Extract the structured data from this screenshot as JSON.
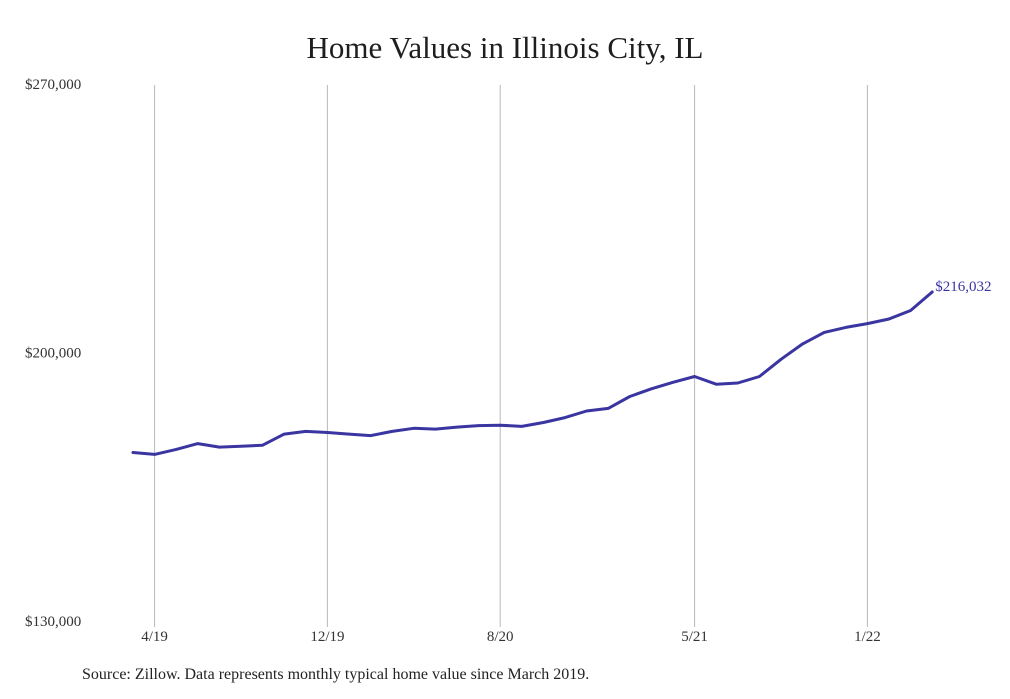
{
  "chart_data": {
    "type": "line",
    "title": "Home Values in Illinois City, IL",
    "xlabel": "",
    "ylabel": "",
    "ylim": [
      130000,
      270000
    ],
    "yticks": [
      {
        "value": 130000,
        "label": "$130,000"
      },
      {
        "value": 200000,
        "label": "$200,000"
      },
      {
        "value": 270000,
        "label": "$270,000"
      }
    ],
    "xticks": [
      {
        "index": 1,
        "label": "4/19"
      },
      {
        "index": 9,
        "label": "12/19"
      },
      {
        "index": 17,
        "label": "8/20"
      },
      {
        "index": 26,
        "label": "5/21"
      },
      {
        "index": 34,
        "label": "1/22"
      }
    ],
    "grid": "vertical",
    "line_color": "#3a35a0",
    "series": [
      {
        "values": [
          174200,
          173700,
          175000,
          176500,
          175600,
          175800,
          176100,
          179000,
          179700,
          179400,
          179000,
          178600,
          179700,
          180500,
          180300,
          180800,
          181200,
          181300,
          181000,
          182000,
          183300,
          185000,
          185700,
          188800,
          190800,
          192500,
          194000,
          192000,
          192300,
          194000,
          198500,
          202500,
          205500,
          206800,
          207800,
          209000,
          211200,
          216032
        ]
      }
    ],
    "end_label": "$216,032"
  },
  "source": "Source: Zillow. Data represents monthly typical home value since March 2019."
}
